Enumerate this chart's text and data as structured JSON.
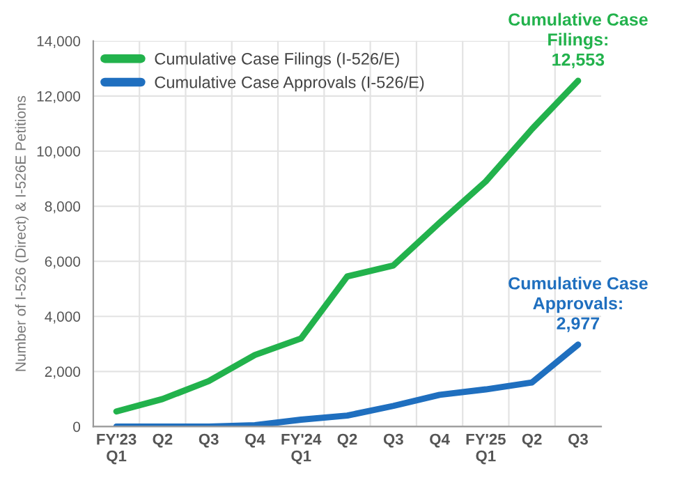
{
  "chart_data": {
    "type": "line",
    "ylabel": "Number of I-526 (Direct) & I-526E Petitions",
    "categories": [
      "FY'23\nQ1",
      "Q2",
      "Q3",
      "Q4",
      "FY'24\nQ1",
      "Q2",
      "Q3",
      "Q4",
      "FY'25\nQ1",
      "Q2",
      "Q3"
    ],
    "series": [
      {
        "name": "Cumulative Case Filings (I-526/E)",
        "color": "#22b24c",
        "values": [
          550,
          1000,
          1650,
          2600,
          3200,
          5450,
          5850,
          7400,
          8900,
          10800,
          12553
        ]
      },
      {
        "name": "Cumulative Case Approvals (I-526/E)",
        "color": "#1f6fbf",
        "values": [
          0,
          0,
          0,
          50,
          250,
          400,
          750,
          1150,
          1350,
          1600,
          2977
        ]
      }
    ],
    "ylim": [
      0,
      14000
    ],
    "yticks": [
      {
        "value": 0,
        "label": "0"
      },
      {
        "value": 2000,
        "label": "2,000"
      },
      {
        "value": 4000,
        "label": "4,000"
      },
      {
        "value": 6000,
        "label": "6,000"
      },
      {
        "value": 8000,
        "label": "8,000"
      },
      {
        "value": 10000,
        "label": "10,000"
      },
      {
        "value": 12000,
        "label": "12,000"
      },
      {
        "value": 14000,
        "label": "14,000"
      }
    ],
    "grid": true,
    "legend": "top left",
    "marker": "none",
    "line_style": "solid",
    "annotations": [
      "Cumulative Case\nFilings:\n12,553",
      "Cumulative Case\nApprovals:\n2,977"
    ]
  }
}
